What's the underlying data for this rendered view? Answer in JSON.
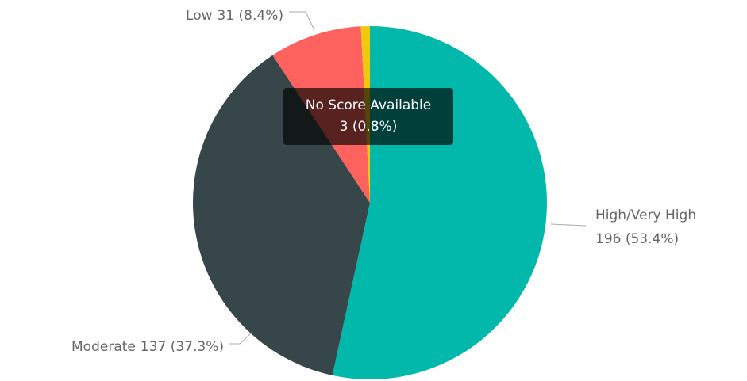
{
  "chart_data": {
    "type": "pie",
    "categories": [
      "High/Very High",
      "Moderate",
      "Low",
      "No Score Available"
    ],
    "values": [
      196,
      137,
      31,
      3
    ],
    "value_labels": [
      "196 (53.4%)",
      "137 (37.3%)",
      "31 (8.4%)",
      "3 (0.8%)"
    ],
    "colors": [
      "#01B8AA",
      "#374649",
      "#FD625E",
      "#F2C80F"
    ]
  }
}
